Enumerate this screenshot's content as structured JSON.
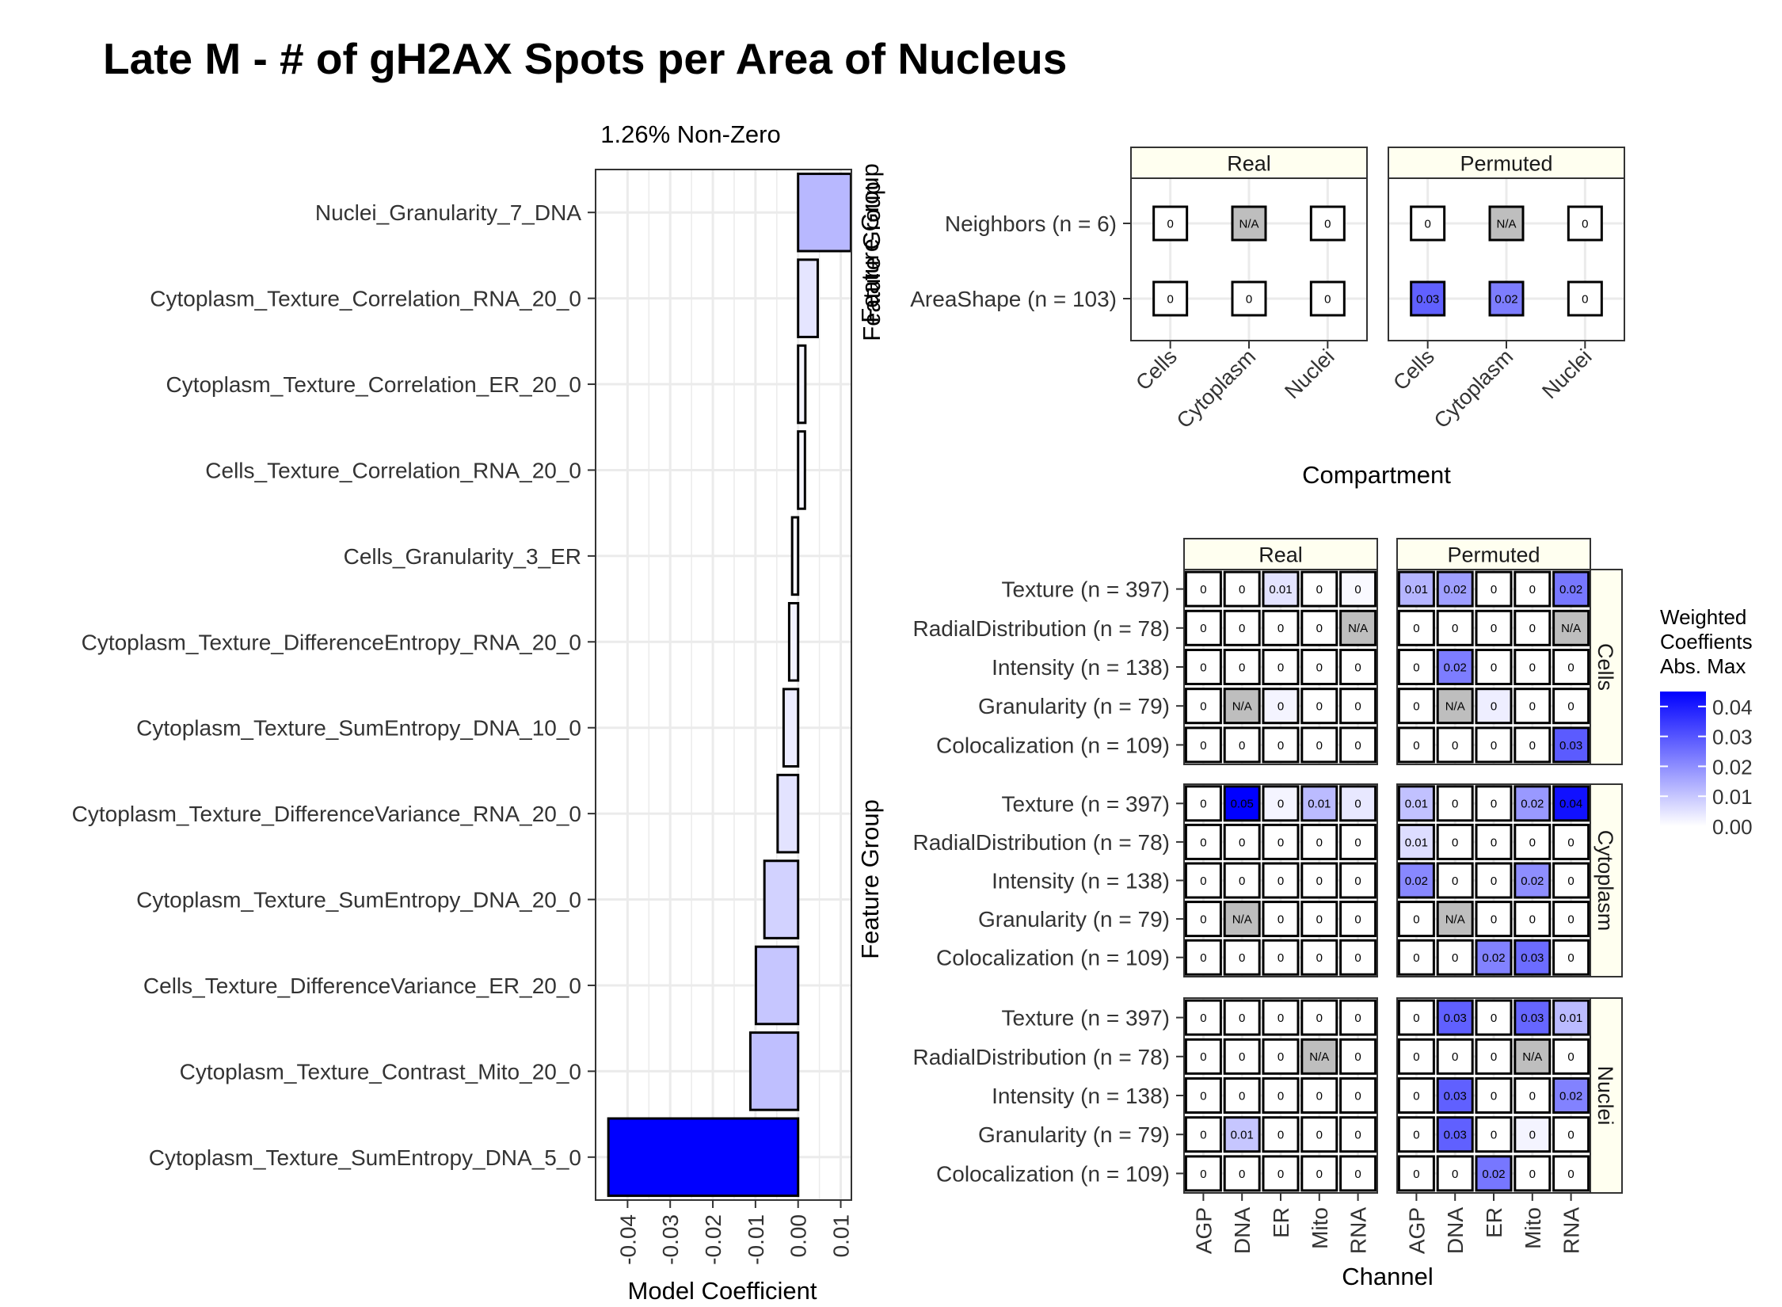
{
  "title": "Late M - # of gH2AX Spots per Area of Nucleus",
  "colors": {
    "scale_low": "#ffffff",
    "scale_high": "#0000ff",
    "na_fill": "#bebebe",
    "strip_fill": "#fffff0",
    "grid": "#ebebeb",
    "tick": "#333333"
  },
  "chart_data": [
    {
      "type": "bar",
      "orientation": "horizontal",
      "subtitle": "1.26% Non-Zero",
      "xlabel": "Model Coefficient",
      "ylabel": "",
      "xlim": [
        -0.0475,
        0.0125
      ],
      "xticks": [
        -0.04,
        -0.03,
        -0.02,
        -0.01,
        0.0,
        0.01
      ],
      "xtick_labels": [
        "-0.04",
        "-0.03",
        "-0.02",
        "-0.01",
        "0.00",
        "0.01"
      ],
      "grid": true,
      "categories": [
        "Nuclei_Granularity_7_DNA",
        "Cytoplasm_Texture_Correlation_RNA_20_0",
        "Cytoplasm_Texture_Correlation_ER_20_0",
        "Cells_Texture_Correlation_RNA_20_0",
        "Cells_Granularity_3_ER",
        "Cytoplasm_Texture_DifferenceEntropy_RNA_20_0",
        "Cytoplasm_Texture_SumEntropy_DNA_10_0",
        "Cytoplasm_Texture_DifferenceVariance_RNA_20_0",
        "Cytoplasm_Texture_SumEntropy_DNA_20_0",
        "Cells_Texture_DifferenceVariance_ER_20_0",
        "Cytoplasm_Texture_Contrast_Mito_20_0",
        "Cytoplasm_Texture_SumEntropy_DNA_5_0"
      ],
      "values": [
        0.0124,
        0.0046,
        0.0017,
        0.0016,
        -0.0014,
        -0.0021,
        -0.0034,
        -0.0048,
        -0.0079,
        -0.0099,
        -0.0112,
        -0.0445
      ]
    },
    {
      "type": "heatmap",
      "xlabel": "Compartment",
      "ylabel": "Feature Group",
      "panels": [
        "Real",
        "Permuted"
      ],
      "columns": [
        "Cells",
        "Cytoplasm",
        "Nuclei"
      ],
      "rows": [
        "Neighbors (n = 6)",
        "AreaShape (n = 103)"
      ],
      "cells": {
        "Real": [
          [
            "0",
            "N/A",
            "0"
          ],
          [
            "0",
            "0",
            "0"
          ]
        ],
        "Permuted": [
          [
            "0",
            "N/A",
            "0"
          ],
          [
            "0.03",
            "0.02",
            "0"
          ]
        ]
      }
    },
    {
      "type": "heatmap",
      "xlabel": "Channel",
      "ylabel": "Feature Group",
      "panels": [
        "Real",
        "Permuted"
      ],
      "facets": [
        "Cells",
        "Cytoplasm",
        "Nuclei"
      ],
      "columns": [
        "AGP",
        "DNA",
        "ER",
        "Mito",
        "RNA"
      ],
      "rows": [
        "Texture (n = 397)",
        "RadialDistribution (n = 78)",
        "Intensity (n = 138)",
        "Granularity (n = 79)",
        "Colocalization (n = 109)"
      ],
      "legend": {
        "title_lines": [
          "Weighted",
          "Coeffients",
          "Abs. Max"
        ],
        "ticks": [
          "0.04",
          "0.03",
          "0.02",
          "0.01",
          "0.00"
        ],
        "range": [
          0,
          0.045
        ],
        "placement": "right"
      },
      "cells": {
        "Cells": {
          "Real": [
            [
              "0",
              "0",
              "0.01",
              "0",
              "0"
            ],
            [
              "0",
              "0",
              "0",
              "0",
              "N/A"
            ],
            [
              "0",
              "0",
              "0",
              "0",
              "0"
            ],
            [
              "0",
              "N/A",
              "0",
              "0",
              "0"
            ],
            [
              "0",
              "0",
              "0",
              "0",
              "0"
            ]
          ],
          "Permuted": [
            [
              "0.01",
              "0.02",
              "0",
              "0",
              "0.02"
            ],
            [
              "0",
              "0",
              "0",
              "0",
              "N/A"
            ],
            [
              "0",
              "0.02",
              "0",
              "0",
              "0"
            ],
            [
              "0",
              "N/A",
              "0",
              "0",
              "0"
            ],
            [
              "0",
              "0",
              "0",
              "0",
              "0.03"
            ]
          ]
        },
        "Cytoplasm": {
          "Real": [
            [
              "0",
              "0.05",
              "0",
              "0.01",
              "0"
            ],
            [
              "0",
              "0",
              "0",
              "0",
              "0"
            ],
            [
              "0",
              "0",
              "0",
              "0",
              "0"
            ],
            [
              "0",
              "N/A",
              "0",
              "0",
              "0"
            ],
            [
              "0",
              "0",
              "0",
              "0",
              "0"
            ]
          ],
          "Permuted": [
            [
              "0.01",
              "0",
              "0",
              "0.02",
              "0.04"
            ],
            [
              "0.01",
              "0",
              "0",
              "0",
              "0"
            ],
            [
              "0.02",
              "0",
              "0",
              "0.02",
              "0"
            ],
            [
              "0",
              "N/A",
              "0",
              "0",
              "0"
            ],
            [
              "0",
              "0",
              "0.02",
              "0.03",
              "0"
            ]
          ]
        },
        "Nuclei": {
          "Real": [
            [
              "0",
              "0",
              "0",
              "0",
              "0"
            ],
            [
              "0",
              "0",
              "0",
              "N/A",
              "0"
            ],
            [
              "0",
              "0",
              "0",
              "0",
              "0"
            ],
            [
              "0",
              "0.01",
              "0",
              "0",
              "0"
            ],
            [
              "0",
              "0",
              "0",
              "0",
              "0"
            ]
          ],
          "Permuted": [
            [
              "0",
              "0.03",
              "0",
              "0.03",
              "0.01"
            ],
            [
              "0",
              "0",
              "0",
              "N/A",
              "0"
            ],
            [
              "0",
              "0.03",
              "0",
              "0",
              "0.02"
            ],
            [
              "0",
              "0.03",
              "0",
              "0",
              "0"
            ],
            [
              "0",
              "0",
              "0.02",
              "0",
              "0"
            ]
          ]
        }
      },
      "shade": {
        "Cells": {
          "Real": [
            [
              0,
              0,
              0.005,
              0,
              0.001
            ],
            [
              0,
              0,
              0,
              0,
              0
            ],
            [
              0,
              0,
              0,
              0,
              0
            ],
            [
              0,
              0,
              0.002,
              0,
              0
            ],
            [
              0,
              0,
              0,
              0,
              0
            ]
          ],
          "Permuted": [
            [
              0.013,
              0.017,
              0,
              0,
              0.024
            ],
            [
              0,
              0,
              0,
              0,
              0
            ],
            [
              0,
              0.023,
              0,
              0,
              0
            ],
            [
              0,
              0,
              0.003,
              0,
              0
            ],
            [
              0,
              0,
              0,
              0,
              0.029
            ]
          ]
        },
        "Cytoplasm": {
          "Real": [
            [
              0,
              0.045,
              0.002,
              0.012,
              0.004
            ],
            [
              0,
              0,
              0,
              0,
              0
            ],
            [
              0,
              0,
              0,
              0,
              0
            ],
            [
              0,
              0,
              0,
              0,
              0
            ],
            [
              0,
              0,
              0,
              0,
              0
            ]
          ],
          "Permuted": [
            [
              0.011,
              0,
              0,
              0.018,
              0.042
            ],
            [
              0.006,
              0,
              0,
              0,
              0
            ],
            [
              0.021,
              0,
              0,
              0.02,
              0
            ],
            [
              0,
              0,
              0,
              0,
              0
            ],
            [
              0,
              0,
              0.022,
              0.026,
              0
            ]
          ]
        },
        "Nuclei": {
          "Real": [
            [
              0,
              0,
              0,
              0,
              0
            ],
            [
              0,
              0,
              0,
              0,
              0
            ],
            [
              0,
              0,
              0,
              0,
              0
            ],
            [
              0,
              0.01,
              0,
              0,
              0
            ],
            [
              0,
              0,
              0,
              0,
              0
            ]
          ],
          "Permuted": [
            [
              0,
              0.028,
              0,
              0.027,
              0.012
            ],
            [
              0,
              0,
              0,
              0,
              0
            ],
            [
              0,
              0.028,
              0,
              0,
              0.022
            ],
            [
              0,
              0.028,
              0,
              0.002,
              0
            ],
            [
              0,
              0,
              0.024,
              0,
              0
            ]
          ]
        }
      },
      "top_shade": {
        "Real": [
          [
            0,
            0,
            0
          ],
          [
            0,
            0,
            0
          ]
        ],
        "Permuted": [
          [
            0,
            0,
            0
          ],
          [
            0.028,
            0.023,
            0
          ]
        ]
      }
    }
  ]
}
